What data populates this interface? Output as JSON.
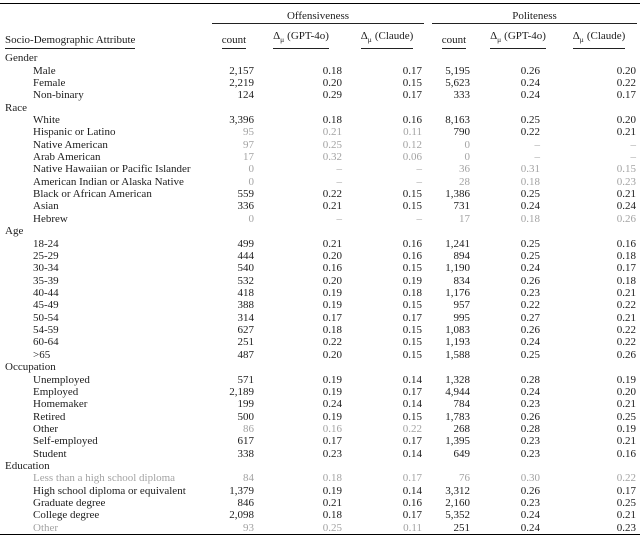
{
  "page": {
    "background": "#ffffff",
    "text_color": "#1c1c1c",
    "muted_color": "#a3a3a3"
  },
  "table": {
    "attribute_header": "Socio-Demographic Attribute",
    "groups": [
      "Offensiveness",
      "Politeness"
    ],
    "count_header": "count",
    "delta": {
      "symbol": "Δ",
      "sub": "μ",
      "gpt": "(GPT-4o)",
      "claude": "(Claude)"
    },
    "missing_marker": "–",
    "sections": [
      {
        "name": "Gender",
        "rows": [
          {
            "label": "Male",
            "gray_label": 0,
            "cells": [
              "2,157",
              "0.18",
              "0.17",
              "5,195",
              "0.26",
              "0.20"
            ],
            "gray": [
              0,
              0,
              0,
              0,
              0,
              0
            ]
          },
          {
            "label": "Female",
            "gray_label": 0,
            "cells": [
              "2,219",
              "0.20",
              "0.15",
              "5,623",
              "0.24",
              "0.22"
            ],
            "gray": [
              0,
              0,
              0,
              0,
              0,
              0
            ]
          },
          {
            "label": "Non-binary",
            "gray_label": 0,
            "cells": [
              "124",
              "0.29",
              "0.17",
              "333",
              "0.24",
              "0.17"
            ],
            "gray": [
              0,
              0,
              0,
              0,
              0,
              0
            ]
          }
        ]
      },
      {
        "name": "Race",
        "rows": [
          {
            "label": "White",
            "gray_label": 0,
            "cells": [
              "3,396",
              "0.18",
              "0.16",
              "8,163",
              "0.25",
              "0.20"
            ],
            "gray": [
              0,
              0,
              0,
              0,
              0,
              0
            ]
          },
          {
            "label": "Hispanic or Latino",
            "gray_label": 0,
            "cells": [
              "95",
              "0.21",
              "0.11",
              "790",
              "0.22",
              "0.21"
            ],
            "gray": [
              1,
              1,
              1,
              0,
              0,
              0
            ]
          },
          {
            "label": "Native American",
            "gray_label": 0,
            "cells": [
              "97",
              "0.25",
              "0.12",
              "0",
              "–",
              "–"
            ],
            "gray": [
              1,
              1,
              1,
              1,
              1,
              1
            ]
          },
          {
            "label": "Arab American",
            "gray_label": 0,
            "cells": [
              "17",
              "0.32",
              "0.06",
              "0",
              "–",
              "–"
            ],
            "gray": [
              1,
              1,
              1,
              1,
              1,
              1
            ]
          },
          {
            "label": "Native Hawaiian or Pacific Islander",
            "gray_label": 0,
            "cells": [
              "0",
              "–",
              "–",
              "36",
              "0.31",
              "0.15"
            ],
            "gray": [
              1,
              1,
              1,
              1,
              1,
              1
            ]
          },
          {
            "label": "American Indian or Alaska Native",
            "gray_label": 0,
            "cells": [
              "0",
              "–",
              "–",
              "28",
              "0.18",
              "0.23"
            ],
            "gray": [
              1,
              1,
              1,
              1,
              1,
              1
            ]
          },
          {
            "label": "Black or African American",
            "gray_label": 0,
            "cells": [
              "559",
              "0.22",
              "0.15",
              "1,386",
              "0.25",
              "0.21"
            ],
            "gray": [
              0,
              0,
              0,
              0,
              0,
              0
            ]
          },
          {
            "label": "Asian",
            "gray_label": 0,
            "cells": [
              "336",
              "0.21",
              "0.15",
              "731",
              "0.24",
              "0.24"
            ],
            "gray": [
              0,
              0,
              0,
              0,
              0,
              0
            ]
          },
          {
            "label": "Hebrew",
            "gray_label": 0,
            "cells": [
              "0",
              "–",
              "–",
              "17",
              "0.18",
              "0.26"
            ],
            "gray": [
              1,
              1,
              1,
              1,
              1,
              1
            ]
          }
        ]
      },
      {
        "name": "Age",
        "rows": [
          {
            "label": "18-24",
            "gray_label": 0,
            "cells": [
              "499",
              "0.21",
              "0.16",
              "1,241",
              "0.25",
              "0.16"
            ],
            "gray": [
              0,
              0,
              0,
              0,
              0,
              0
            ]
          },
          {
            "label": "25-29",
            "gray_label": 0,
            "cells": [
              "444",
              "0.20",
              "0.16",
              "894",
              "0.25",
              "0.18"
            ],
            "gray": [
              0,
              0,
              0,
              0,
              0,
              0
            ]
          },
          {
            "label": "30-34",
            "gray_label": 0,
            "cells": [
              "540",
              "0.16",
              "0.15",
              "1,190",
              "0.24",
              "0.17"
            ],
            "gray": [
              0,
              0,
              0,
              0,
              0,
              0
            ]
          },
          {
            "label": "35-39",
            "gray_label": 0,
            "cells": [
              "532",
              "0.20",
              "0.19",
              "834",
              "0.26",
              "0.18"
            ],
            "gray": [
              0,
              0,
              0,
              0,
              0,
              0
            ]
          },
          {
            "label": "40-44",
            "gray_label": 0,
            "cells": [
              "418",
              "0.19",
              "0.18",
              "1,176",
              "0.23",
              "0.21"
            ],
            "gray": [
              0,
              0,
              0,
              0,
              0,
              0
            ]
          },
          {
            "label": "45-49",
            "gray_label": 0,
            "cells": [
              "388",
              "0.19",
              "0.15",
              "957",
              "0.22",
              "0.22"
            ],
            "gray": [
              0,
              0,
              0,
              0,
              0,
              0
            ]
          },
          {
            "label": "50-54",
            "gray_label": 0,
            "cells": [
              "314",
              "0.17",
              "0.17",
              "995",
              "0.27",
              "0.21"
            ],
            "gray": [
              0,
              0,
              0,
              0,
              0,
              0
            ]
          },
          {
            "label": "54-59",
            "gray_label": 0,
            "cells": [
              "627",
              "0.18",
              "0.15",
              "1,083",
              "0.26",
              "0.22"
            ],
            "gray": [
              0,
              0,
              0,
              0,
              0,
              0
            ]
          },
          {
            "label": "60-64",
            "gray_label": 0,
            "cells": [
              "251",
              "0.22",
              "0.15",
              "1,193",
              "0.24",
              "0.22"
            ],
            "gray": [
              0,
              0,
              0,
              0,
              0,
              0
            ]
          },
          {
            "label": ">65",
            "gray_label": 0,
            "cells": [
              "487",
              "0.20",
              "0.15",
              "1,588",
              "0.25",
              "0.26"
            ],
            "gray": [
              0,
              0,
              0,
              0,
              0,
              0
            ]
          }
        ]
      },
      {
        "name": "Occupation",
        "rows": [
          {
            "label": "Unemployed",
            "gray_label": 0,
            "cells": [
              "571",
              "0.19",
              "0.14",
              "1,328",
              "0.28",
              "0.19"
            ],
            "gray": [
              0,
              0,
              0,
              0,
              0,
              0
            ]
          },
          {
            "label": "Employed",
            "gray_label": 0,
            "cells": [
              "2,189",
              "0.19",
              "0.17",
              "4,944",
              "0.24",
              "0.20"
            ],
            "gray": [
              0,
              0,
              0,
              0,
              0,
              0
            ]
          },
          {
            "label": "Homemaker",
            "gray_label": 0,
            "cells": [
              "199",
              "0.24",
              "0.14",
              "784",
              "0.23",
              "0.21"
            ],
            "gray": [
              0,
              0,
              0,
              0,
              0,
              0
            ]
          },
          {
            "label": "Retired",
            "gray_label": 0,
            "cells": [
              "500",
              "0.19",
              "0.15",
              "1,783",
              "0.26",
              "0.25"
            ],
            "gray": [
              0,
              0,
              0,
              0,
              0,
              0
            ]
          },
          {
            "label": "Other",
            "gray_label": 0,
            "cells": [
              "86",
              "0.16",
              "0.22",
              "268",
              "0.28",
              "0.19"
            ],
            "gray": [
              1,
              1,
              1,
              0,
              0,
              0
            ]
          },
          {
            "label": "Self-employed",
            "gray_label": 0,
            "cells": [
              "617",
              "0.17",
              "0.17",
              "1,395",
              "0.23",
              "0.21"
            ],
            "gray": [
              0,
              0,
              0,
              0,
              0,
              0
            ]
          },
          {
            "label": "Student",
            "gray_label": 0,
            "cells": [
              "338",
              "0.23",
              "0.14",
              "649",
              "0.23",
              "0.16"
            ],
            "gray": [
              0,
              0,
              0,
              0,
              0,
              0
            ]
          }
        ]
      },
      {
        "name": "Education",
        "rows": [
          {
            "label": "Less than a high school diploma",
            "gray_label": 1,
            "cells": [
              "84",
              "0.18",
              "0.17",
              "76",
              "0.30",
              "0.22"
            ],
            "gray": [
              1,
              1,
              1,
              1,
              1,
              1
            ]
          },
          {
            "label": "High school diploma or equivalent",
            "gray_label": 0,
            "cells": [
              "1,379",
              "0.19",
              "0.14",
              "3,312",
              "0.26",
              "0.17"
            ],
            "gray": [
              0,
              0,
              0,
              0,
              0,
              0
            ]
          },
          {
            "label": "Graduate degree",
            "gray_label": 0,
            "cells": [
              "846",
              "0.21",
              "0.16",
              "2,160",
              "0.23",
              "0.25"
            ],
            "gray": [
              0,
              0,
              0,
              0,
              0,
              0
            ]
          },
          {
            "label": "College degree",
            "gray_label": 0,
            "cells": [
              "2,098",
              "0.18",
              "0.17",
              "5,352",
              "0.24",
              "0.21"
            ],
            "gray": [
              0,
              0,
              0,
              0,
              0,
              0
            ]
          },
          {
            "label": "Other",
            "gray_label": 1,
            "cells": [
              "93",
              "0.25",
              "0.11",
              "251",
              "0.24",
              "0.23"
            ],
            "gray": [
              1,
              1,
              1,
              0,
              0,
              0
            ]
          }
        ]
      }
    ]
  }
}
